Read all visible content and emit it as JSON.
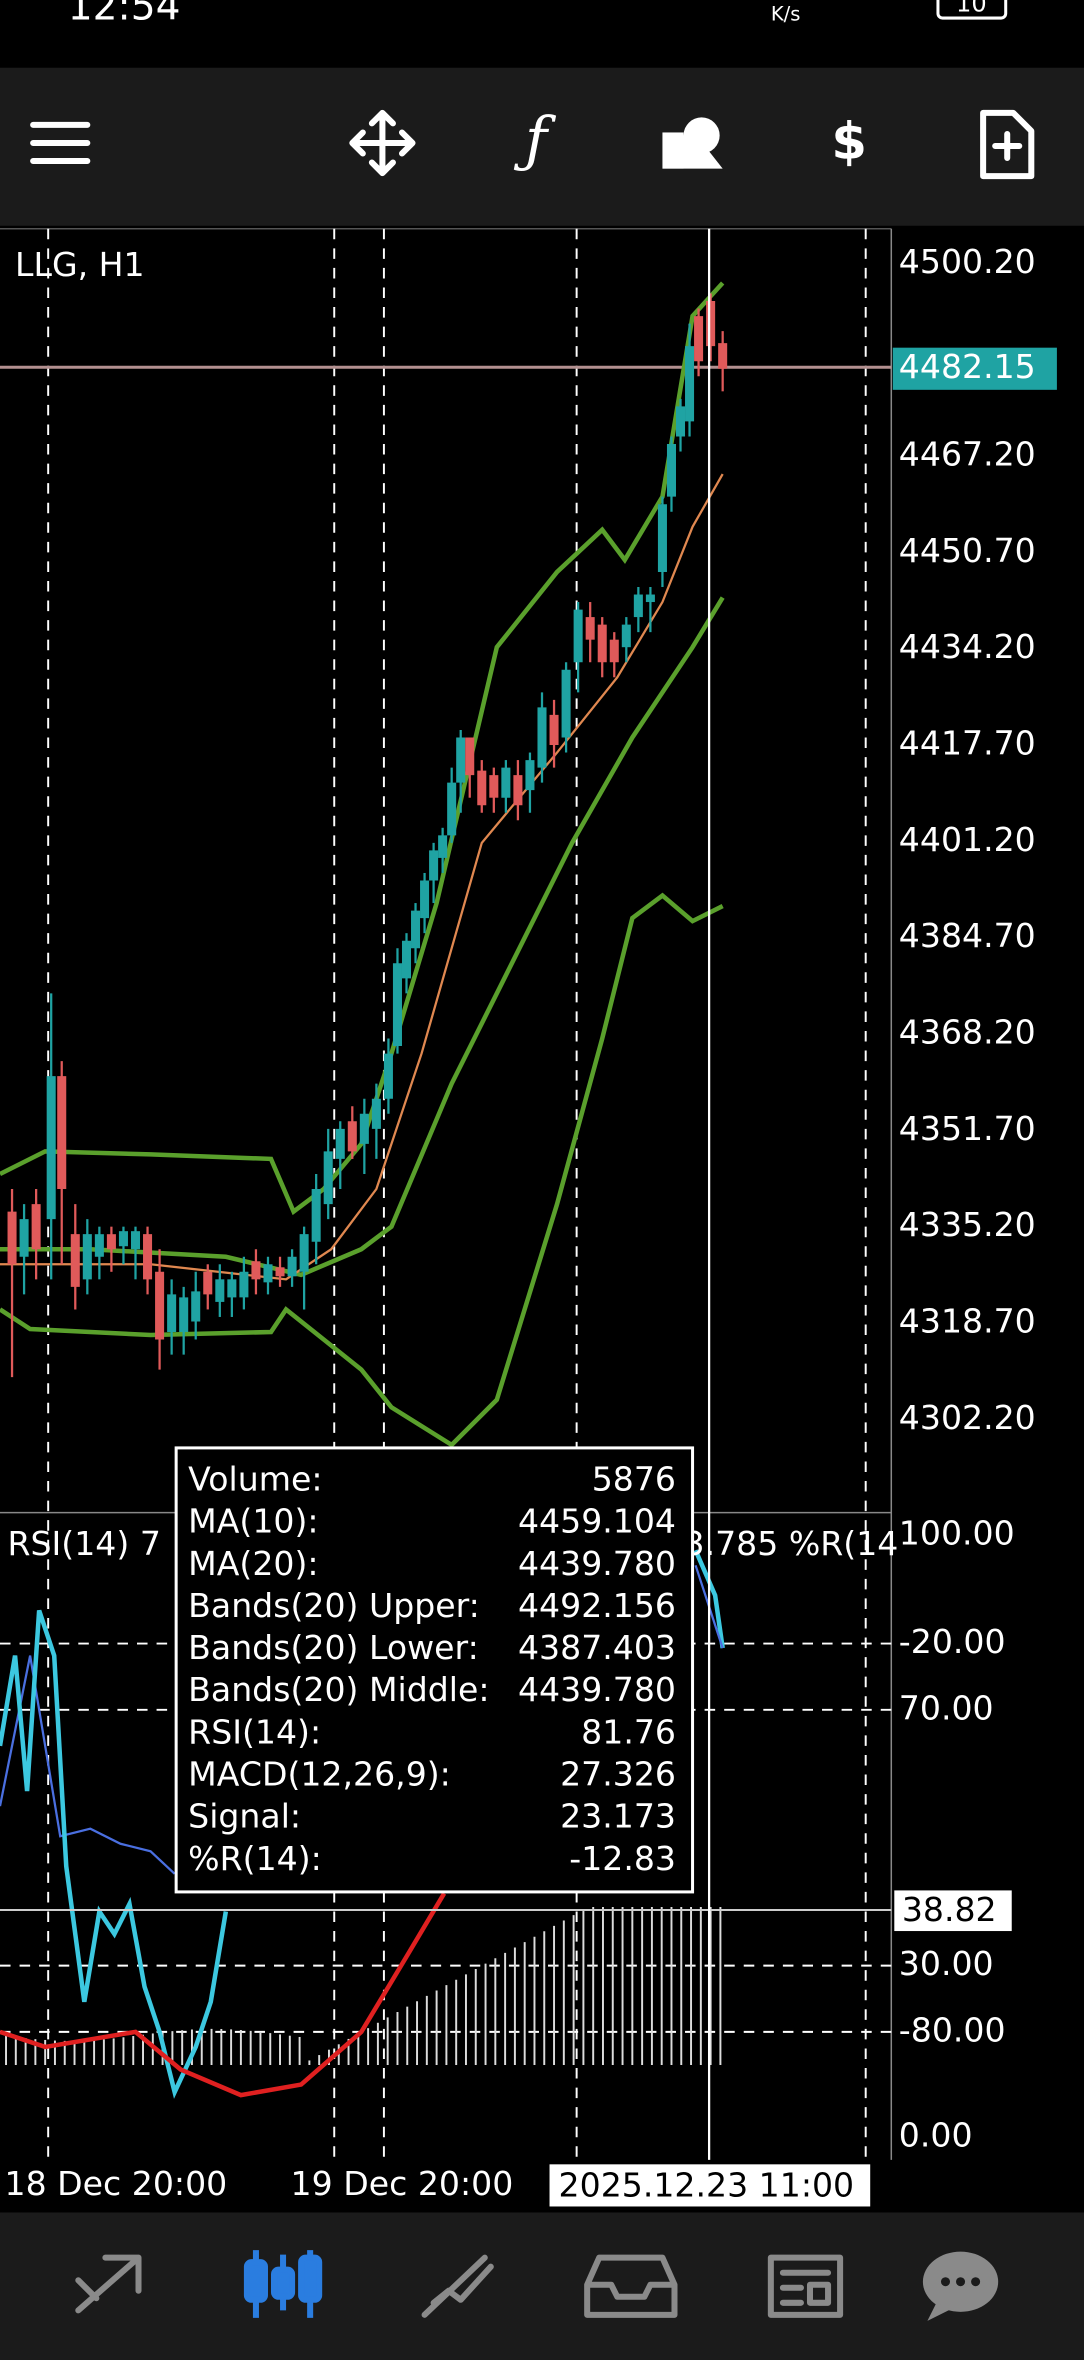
{
  "status_bar": {
    "time": "12:54",
    "speed": "K/s",
    "battery": "10"
  },
  "chart": {
    "symbol": "LLG, H1",
    "price_labels": [
      "4500.20",
      "4467.20",
      "4450.70",
      "4434.20",
      "4417.70",
      "4401.20",
      "4384.70",
      "4368.20",
      "4351.70",
      "4335.20",
      "4318.70",
      "4302.20"
    ],
    "current_price": "4482.15",
    "indicator_labels": [
      "100.00",
      "-20.00",
      "70.00",
      "30.00",
      "-80.00",
      "0.00"
    ],
    "cursor_value": "38.82",
    "indicator_title_left": "RSI(14) 7",
    "indicator_title_right": "3.785 %R(14",
    "time_labels": [
      "18 Dec 20:00",
      "19 Dec 20:00"
    ],
    "cursor_time": "2025.12.23 11:00"
  },
  "tooltip": {
    "rows": [
      [
        "Volume:",
        "5876"
      ],
      [
        "MA(10):",
        "4459.104"
      ],
      [
        "MA(20):",
        "4439.780"
      ],
      [
        "Bands(20) Upper:",
        "4492.156"
      ],
      [
        "Bands(20) Lower:",
        "4387.403"
      ],
      [
        "Bands(20) Middle:",
        "4439.780"
      ],
      [
        "RSI(14):",
        "81.76"
      ],
      [
        "MACD(12,26,9):",
        "27.326"
      ],
      [
        "Signal:",
        "23.173"
      ],
      [
        "%R(14):",
        "-12.83"
      ]
    ]
  }
}
